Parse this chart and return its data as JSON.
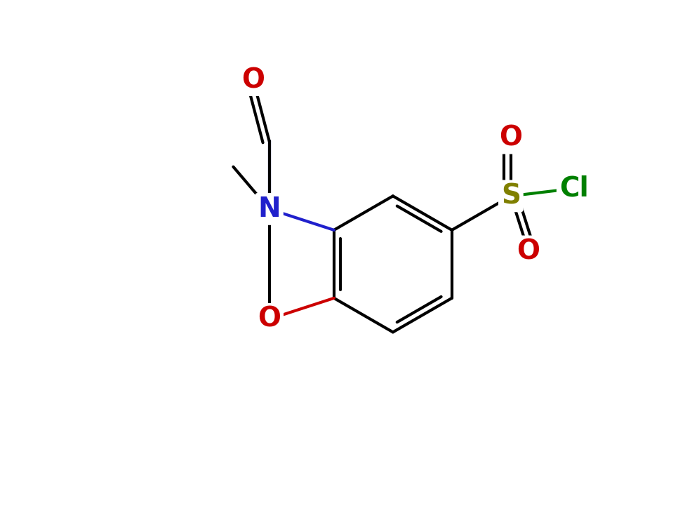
{
  "background_color": "#ffffff",
  "atom_colors": {
    "C": "#000000",
    "N": "#2020cc",
    "O": "#cc0000",
    "S": "#808000",
    "Cl": "#008000"
  },
  "bond_color": "#000000",
  "bond_width": 3.0,
  "figsize": [
    9.76,
    7.24
  ],
  "dpi": 100,
  "xlim": [
    0,
    10
  ],
  "ylim": [
    0,
    10
  ],
  "font_size": 28
}
